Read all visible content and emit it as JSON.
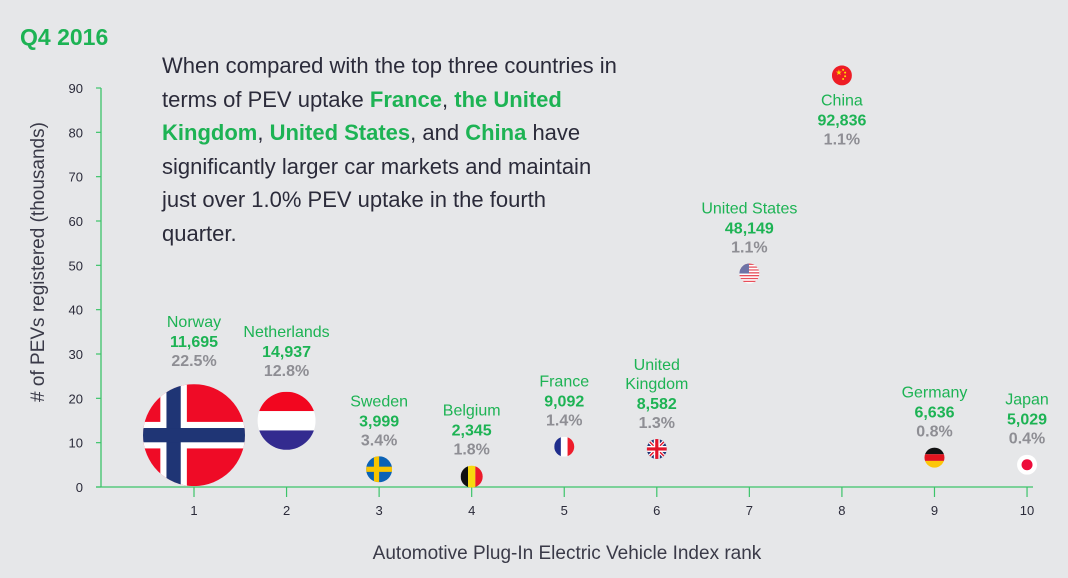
{
  "header": {
    "title": "Q4 2016"
  },
  "blurb": {
    "segments": [
      {
        "text": "When compared with the top three countries in terms of PEV uptake ",
        "highlight": false
      },
      {
        "text": "France",
        "highlight": true
      },
      {
        "text": ", ",
        "highlight": false
      },
      {
        "text": "the United Kingdom",
        "highlight": true
      },
      {
        "text": ", ",
        "highlight": false
      },
      {
        "text": "United States",
        "highlight": true
      },
      {
        "text": ", and ",
        "highlight": false
      },
      {
        "text": "China",
        "highlight": true
      },
      {
        "text": " have significantly larger car markets and maintain just over 1.0% PEV uptake in the fourth quarter.",
        "highlight": false
      }
    ]
  },
  "colors": {
    "background": "#e6e7e9",
    "accent_green": "#1db354",
    "axis_green": "#3cc46a",
    "percent_gray": "#8e8e94",
    "text_dark": "#2b2b3a"
  },
  "chart_data": {
    "type": "scatter",
    "title": "Q4 2016",
    "xlabel": "Automotive Plug-In Electric Vehicle Index rank",
    "ylabel": "# of PEVs registered (thousands)",
    "xlim": [
      0,
      10
    ],
    "ylim": [
      0,
      90
    ],
    "x_ticks": [
      1,
      2,
      3,
      4,
      5,
      6,
      7,
      8,
      9,
      10
    ],
    "y_ticks": [
      0,
      10,
      20,
      30,
      40,
      50,
      60,
      70,
      80,
      90
    ],
    "grid": false,
    "marker_size_encodes": "PEV market share (%)",
    "points": [
      {
        "rank": 1,
        "country": "Norway",
        "label_lines": [
          "Norway"
        ],
        "pevs": 11695,
        "pevs_label": "11,695",
        "share": 22.5,
        "share_label": "22.5%",
        "flag": "norway-flag"
      },
      {
        "rank": 2,
        "country": "Netherlands",
        "label_lines": [
          "Netherlands"
        ],
        "pevs": 14937,
        "pevs_label": "14,937",
        "share": 12.8,
        "share_label": "12.8%",
        "flag": "netherlands-flag"
      },
      {
        "rank": 3,
        "country": "Sweden",
        "label_lines": [
          "Sweden"
        ],
        "pevs": 3999,
        "pevs_label": "3,999",
        "share": 3.4,
        "share_label": "3.4%",
        "flag": "sweden-flag"
      },
      {
        "rank": 4,
        "country": "Belgium",
        "label_lines": [
          "Belgium"
        ],
        "pevs": 2345,
        "pevs_label": "2,345",
        "share": 1.8,
        "share_label": "1.8%",
        "flag": "belgium-flag"
      },
      {
        "rank": 5,
        "country": "France",
        "label_lines": [
          "France"
        ],
        "pevs": 9092,
        "pevs_label": "9,092",
        "share": 1.4,
        "share_label": "1.4%",
        "flag": "france-flag"
      },
      {
        "rank": 6,
        "country": "United Kingdom",
        "label_lines": [
          "United",
          "Kingdom"
        ],
        "pevs": 8582,
        "pevs_label": "8,582",
        "share": 1.3,
        "share_label": "1.3%",
        "flag": "uk-flag"
      },
      {
        "rank": 7,
        "country": "United States",
        "label_lines": [
          "United States"
        ],
        "pevs": 48149,
        "pevs_label": "48,149",
        "share": 1.1,
        "share_label": "1.1%",
        "flag": "usa-flag"
      },
      {
        "rank": 8,
        "country": "China",
        "label_lines": [
          "China"
        ],
        "pevs": 92836,
        "pevs_label": "92,836",
        "share": 1.1,
        "share_label": "1.1%",
        "flag": "china-flag"
      },
      {
        "rank": 9,
        "country": "Germany",
        "label_lines": [
          "Germany"
        ],
        "pevs": 6636,
        "pevs_label": "6,636",
        "share": 0.8,
        "share_label": "0.8%",
        "flag": "germany-flag"
      },
      {
        "rank": 10,
        "country": "Japan",
        "label_lines": [
          "Japan"
        ],
        "pevs": 5029,
        "pevs_label": "5,029",
        "share": 0.4,
        "share_label": "0.4%",
        "flag": "japan-flag"
      }
    ]
  }
}
